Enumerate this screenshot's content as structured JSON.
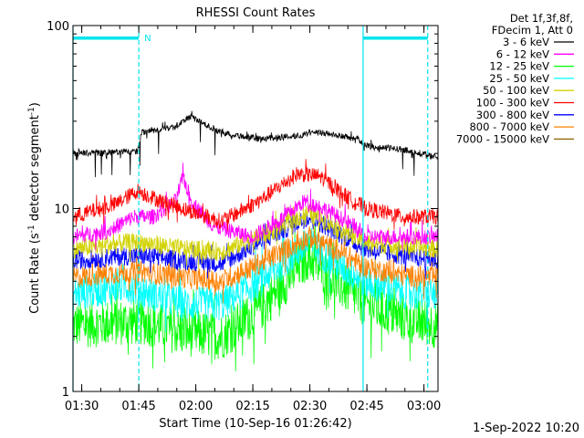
{
  "chart_data": {
    "type": "line",
    "title": "RHESSI Count Rates",
    "xlabel": "Start Time (10-Sep-16 01:26:42)",
    "ylabel_main": "Count Rate (s",
    "ylabel_sup1": "-1",
    "ylabel_mid": " detector segment",
    "ylabel_sup2": "-1",
    "ylabel_end": ")",
    "yscale": "log",
    "ylim": [
      1,
      100
    ],
    "xlim_minutes": [
      1.0,
      97.0
    ],
    "x_ticks": [
      {
        "label": "01:30",
        "minute": 3.3
      },
      {
        "label": "01:45",
        "minute": 18.3
      },
      {
        "label": "02:00",
        "minute": 33.3
      },
      {
        "label": "02:15",
        "minute": 48.3
      },
      {
        "label": "02:30",
        "minute": 63.3
      },
      {
        "label": "02:45",
        "minute": 78.3
      },
      {
        "label": "03:00",
        "minute": 93.3
      }
    ],
    "y_ticks": [
      {
        "label": "1",
        "value": 1
      },
      {
        "label": "10",
        "value": 10
      },
      {
        "label": "100",
        "value": 100
      }
    ],
    "legend_header": [
      "Det 1f,3f,8f,",
      "FDecim 1, Att 0"
    ],
    "legend_placement": "right",
    "series": [
      {
        "name": "3 - 6 keV",
        "color": "#000000"
      },
      {
        "name": "6 - 12 keV",
        "color": "#ff00ff"
      },
      {
        "name": "12 - 25 keV",
        "color": "#00ff00"
      },
      {
        "name": "25 - 50 keV",
        "color": "#00ffff"
      },
      {
        "name": "50 - 100 keV",
        "color": "#d2d200"
      },
      {
        "name": "100 - 300 keV",
        "color": "#ff0000"
      },
      {
        "name": "300 - 800 keV",
        "color": "#0000ff"
      },
      {
        "name": "800 - 7000 keV",
        "color": "#ff8000"
      },
      {
        "name": "7000 - 15000 keV",
        "color": "#8c6400"
      }
    ],
    "series_profiles": {
      "3 - 6 keV": [
        [
          1,
          20
        ],
        [
          18,
          20.5
        ],
        [
          19,
          26
        ],
        [
          28,
          28
        ],
        [
          32,
          32
        ],
        [
          34,
          30
        ],
        [
          40,
          26
        ],
        [
          50,
          24
        ],
        [
          60,
          25
        ],
        [
          66,
          26
        ],
        [
          76,
          24
        ],
        [
          78,
          22
        ],
        [
          88,
          21
        ],
        [
          97,
          19
        ]
      ],
      "6 - 12 keV": [
        [
          1,
          7
        ],
        [
          10,
          7.5
        ],
        [
          17,
          9
        ],
        [
          22,
          9
        ],
        [
          28,
          11
        ],
        [
          30,
          15
        ],
        [
          32,
          11
        ],
        [
          38,
          8
        ],
        [
          48,
          7
        ],
        [
          55,
          8.5
        ],
        [
          62,
          11
        ],
        [
          67,
          10
        ],
        [
          75,
          8
        ],
        [
          78,
          7
        ],
        [
          97,
          7
        ]
      ],
      "12 - 25 keV": [
        [
          1,
          2.3
        ],
        [
          15,
          2.4
        ],
        [
          20,
          2.4
        ],
        [
          30,
          2.1
        ],
        [
          40,
          2
        ],
        [
          50,
          2.8
        ],
        [
          63,
          5.5
        ],
        [
          70,
          4
        ],
        [
          78,
          3
        ],
        [
          88,
          2.5
        ],
        [
          97,
          2.3
        ]
      ],
      "25 - 50 keV": [
        [
          1,
          3.4
        ],
        [
          15,
          3.8
        ],
        [
          20,
          3.5
        ],
        [
          30,
          3
        ],
        [
          40,
          3
        ],
        [
          50,
          4
        ],
        [
          63,
          6.5
        ],
        [
          70,
          5
        ],
        [
          78,
          4
        ],
        [
          88,
          3.5
        ],
        [
          97,
          3.4
        ]
      ],
      "50 - 100 keV": [
        [
          1,
          6
        ],
        [
          15,
          6.5
        ],
        [
          20,
          6.5
        ],
        [
          30,
          6
        ],
        [
          40,
          5.8
        ],
        [
          50,
          7
        ],
        [
          63,
          9.5
        ],
        [
          70,
          8
        ],
        [
          78,
          6.5
        ],
        [
          97,
          6
        ]
      ],
      "100 - 300 keV": [
        [
          1,
          9
        ],
        [
          12,
          10.5
        ],
        [
          18,
          12.5
        ],
        [
          24,
          11
        ],
        [
          30,
          10
        ],
        [
          40,
          8.5
        ],
        [
          50,
          11
        ],
        [
          60,
          15.5
        ],
        [
          66,
          15
        ],
        [
          72,
          12
        ],
        [
          78,
          10
        ],
        [
          88,
          9
        ],
        [
          97,
          9
        ]
      ],
      "300 - 800 keV": [
        [
          1,
          5.2
        ],
        [
          15,
          5.5
        ],
        [
          20,
          5.5
        ],
        [
          30,
          5.2
        ],
        [
          40,
          5
        ],
        [
          50,
          6.5
        ],
        [
          63,
          9
        ],
        [
          70,
          7.5
        ],
        [
          78,
          6
        ],
        [
          88,
          5.5
        ],
        [
          97,
          5.2
        ]
      ],
      "800 - 7000 keV": [
        [
          1,
          4.2
        ],
        [
          15,
          4.5
        ],
        [
          20,
          4.5
        ],
        [
          30,
          4.2
        ],
        [
          40,
          4
        ],
        [
          50,
          5
        ],
        [
          63,
          7
        ],
        [
          70,
          6
        ],
        [
          78,
          4.8
        ],
        [
          88,
          4.3
        ],
        [
          97,
          4.2
        ]
      ],
      "7000 - 15000 keV": [
        [
          1,
          4.1
        ],
        [
          97,
          4.1
        ]
      ]
    },
    "attenuator_bars": [
      {
        "start_minute": 1.0,
        "end_minute": 18.3,
        "label": "N"
      },
      {
        "start_minute": 77.3,
        "end_minute": 94.3,
        "label": ""
      }
    ],
    "vertical_markers_minutes": [
      1.0,
      18.3,
      77.3,
      94.3
    ],
    "marker_color": "#00e5ee"
  },
  "footer_date": "1-Sep-2022 10:20"
}
